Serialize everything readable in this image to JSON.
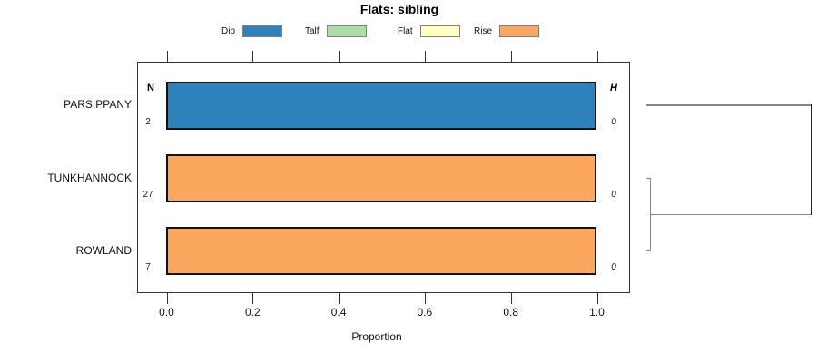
{
  "title": "Flats: sibling",
  "legend": {
    "items": [
      {
        "label": "Dip",
        "color": "#2E82BB"
      },
      {
        "label": "Talf",
        "color": "#ABDDA4"
      },
      {
        "label": "Flat",
        "color": "#FFFFBF"
      },
      {
        "label": "Rise",
        "color": "#FBA75E"
      }
    ]
  },
  "axis": {
    "label": "Proportion",
    "ticks": [
      0,
      0.2,
      0.4,
      0.6,
      0.8,
      1.0
    ],
    "range": [
      0,
      1
    ]
  },
  "n_column": {
    "header": "N",
    "values": [
      "2",
      "27",
      "7"
    ]
  },
  "h_column": {
    "header": "H",
    "values": [
      "0",
      "0",
      "0"
    ]
  },
  "chart_data": {
    "type": "bar",
    "orientation": "horizontal",
    "title": "Flats: sibling",
    "xlabel": "Proportion",
    "xlim": [
      0,
      1
    ],
    "xticks": [
      0,
      0.2,
      0.4,
      0.6,
      0.8,
      1.0
    ],
    "categories": [
      "PARSIPPANY",
      "TUNKHANNOCK",
      "ROWLAND"
    ],
    "series": [
      {
        "name": "Dip",
        "color": "#2E82BB",
        "values": [
          1.0,
          0,
          0
        ]
      },
      {
        "name": "Talf",
        "color": "#ABDDA4",
        "values": [
          0,
          0,
          0
        ]
      },
      {
        "name": "Flat",
        "color": "#FFFFBF",
        "values": [
          0,
          0,
          0
        ]
      },
      {
        "name": "Rise",
        "color": "#FBA75E",
        "values": [
          0,
          1.0,
          1.0
        ]
      }
    ],
    "annotations": {
      "N": [
        "2",
        "27",
        "7"
      ],
      "H": [
        "0",
        "0",
        "0"
      ]
    },
    "legend_position": "top",
    "grid": false,
    "dendrogram": {
      "position": "right",
      "merges": [
        {
          "members": [
            "TUNKHANNOCK",
            "ROWLAND"
          ],
          "relative_height": 0.025
        },
        {
          "members": [
            "TUNKHANNOCK+ROWLAND",
            "PARSIPPANY"
          ],
          "relative_height": 1.0
        }
      ]
    }
  }
}
